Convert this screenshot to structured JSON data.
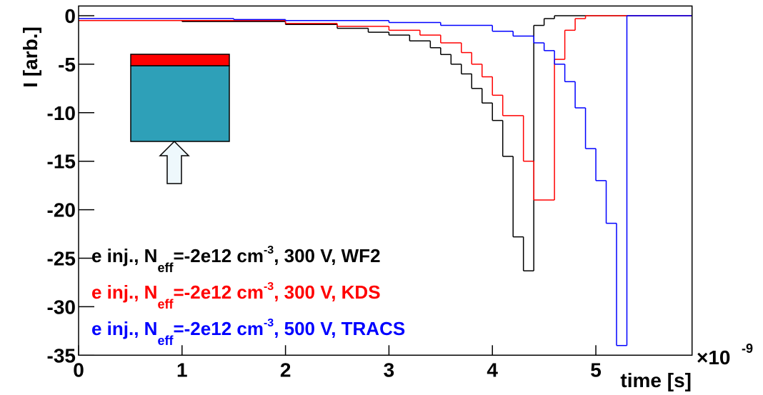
{
  "chart_data": {
    "type": "step",
    "xlabel": "time [s]",
    "ylabel": "I [arb.]",
    "x_exponent": {
      "base": "×10",
      "power": "-9"
    },
    "xlim": [
      0,
      5.93
    ],
    "ylim": [
      -35,
      1.0
    ],
    "xticks": [
      0,
      1,
      2,
      3,
      4,
      5
    ],
    "yticks": [
      0,
      -5,
      -10,
      -15,
      -20,
      -25,
      -30,
      -35
    ],
    "series": [
      {
        "name": [
          "e inj., N",
          "eff",
          "=-2e12 cm",
          "-3",
          ", 300 V, WF2"
        ],
        "color": "#000000",
        "x": [
          0,
          1.0,
          2.0,
          2.5,
          2.8,
          3.0,
          3.2,
          3.4,
          3.5,
          3.6,
          3.7,
          3.8,
          3.9,
          4.0,
          4.1,
          4.2,
          4.3,
          4.4,
          4.5,
          4.6
        ],
        "values": [
          -0.5,
          -0.6,
          -0.9,
          -1.3,
          -1.7,
          -2.0,
          -2.6,
          -3.3,
          -4.0,
          -5.0,
          -6.0,
          -7.5,
          -9.0,
          -10.8,
          -14.5,
          -22.8,
          -26.3,
          -1.0,
          -0.3,
          0
        ]
      },
      {
        "name": [
          "e inj., N",
          "eff",
          "=-2e12 cm",
          "-3",
          ", 300 V, KDS"
        ],
        "color": "#ff0000",
        "x": [
          0,
          2.0,
          2.5,
          3.0,
          3.3,
          3.5,
          3.7,
          3.8,
          3.9,
          4.0,
          4.1,
          4.3,
          4.4,
          4.6,
          4.7,
          4.8,
          4.9
        ],
        "values": [
          -0.5,
          -0.8,
          -1.1,
          -1.5,
          -2.0,
          -2.8,
          -3.8,
          -5.0,
          -6.3,
          -8.2,
          -10.3,
          -15.0,
          -19.0,
          -4.5,
          -1.5,
          -0.3,
          0
        ]
      },
      {
        "name": [
          "e inj., N",
          "eff",
          "=-2e12 cm",
          "-3",
          ", 500 V, TRACS"
        ],
        "color": "#0000ff",
        "x": [
          0,
          1.5,
          2.0,
          3.0,
          3.5,
          4.0,
          4.2,
          4.4,
          4.5,
          4.6,
          4.7,
          4.8,
          4.9,
          5.0,
          5.1,
          5.2,
          5.3
        ],
        "values": [
          -0.3,
          -0.4,
          -0.5,
          -0.7,
          -1.0,
          -1.6,
          -2.1,
          -2.8,
          -3.6,
          -5.0,
          -6.8,
          -9.5,
          -13.7,
          -17.0,
          -21.4,
          -34.0,
          0
        ]
      }
    ]
  }
}
